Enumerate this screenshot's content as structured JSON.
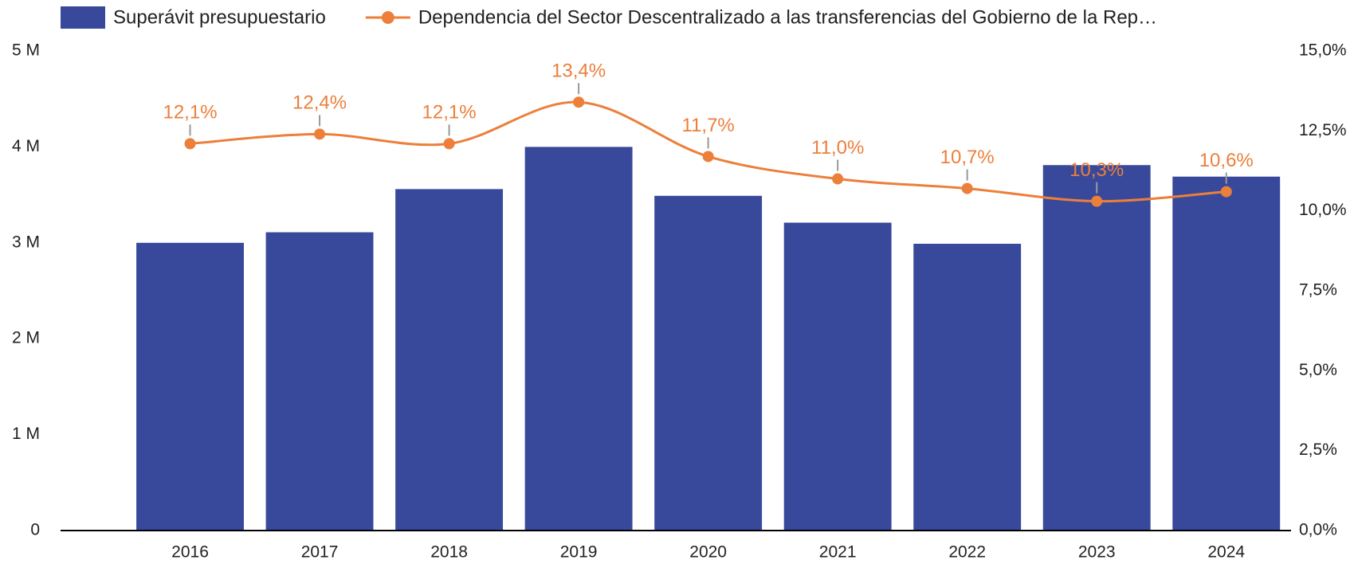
{
  "chart_data": {
    "type": "bar_line",
    "categories": [
      "2016",
      "2017",
      "2018",
      "2019",
      "2020",
      "2021",
      "2022",
      "2023",
      "2024"
    ],
    "series": [
      {
        "name": "Superávit presupuestario",
        "type": "bar",
        "color": "#38499b",
        "values": [
          3000000,
          3110000,
          3560000,
          4000000,
          3490000,
          3210000,
          2990000,
          3810000,
          3690000
        ]
      },
      {
        "name": "Dependencia del Sector Descentralizado a las transferencias del Gobierno de la Rep…",
        "type": "line",
        "axis": "y2",
        "color": "#ec7f3a",
        "values": [
          12.1,
          12.4,
          12.1,
          13.4,
          11.7,
          11.0,
          10.7,
          10.3,
          10.6
        ],
        "value_labels": [
          "12,1%",
          "12,4%",
          "12,1%",
          "13,4%",
          "11,7%",
          "11,0%",
          "10,7%",
          "10,3%",
          "10,6%"
        ]
      }
    ],
    "ylim": [
      0,
      5000000
    ],
    "yticks": [
      0,
      {
        "value": 1000000,
        "label": "1 M"
      },
      {
        "value": 2000000,
        "label": "2 M"
      },
      {
        "value": 3000000,
        "label": "3 M"
      },
      {
        "value": 4000000,
        "label": "4 M"
      },
      {
        "value": 5000000,
        "label": "5 M"
      }
    ],
    "y2lim": [
      0,
      15
    ],
    "y2ticks": [
      {
        "value": 0,
        "label": "0,0%"
      },
      {
        "value": 2.5,
        "label": "2,5%"
      },
      {
        "value": 5,
        "label": "5,0%"
      },
      {
        "value": 7.5,
        "label": "7,5%"
      },
      {
        "value": 10,
        "label": "10,0%"
      },
      {
        "value": 12.5,
        "label": "12,5%"
      },
      {
        "value": 15,
        "label": "15,0%"
      }
    ],
    "legend": "top-left"
  }
}
